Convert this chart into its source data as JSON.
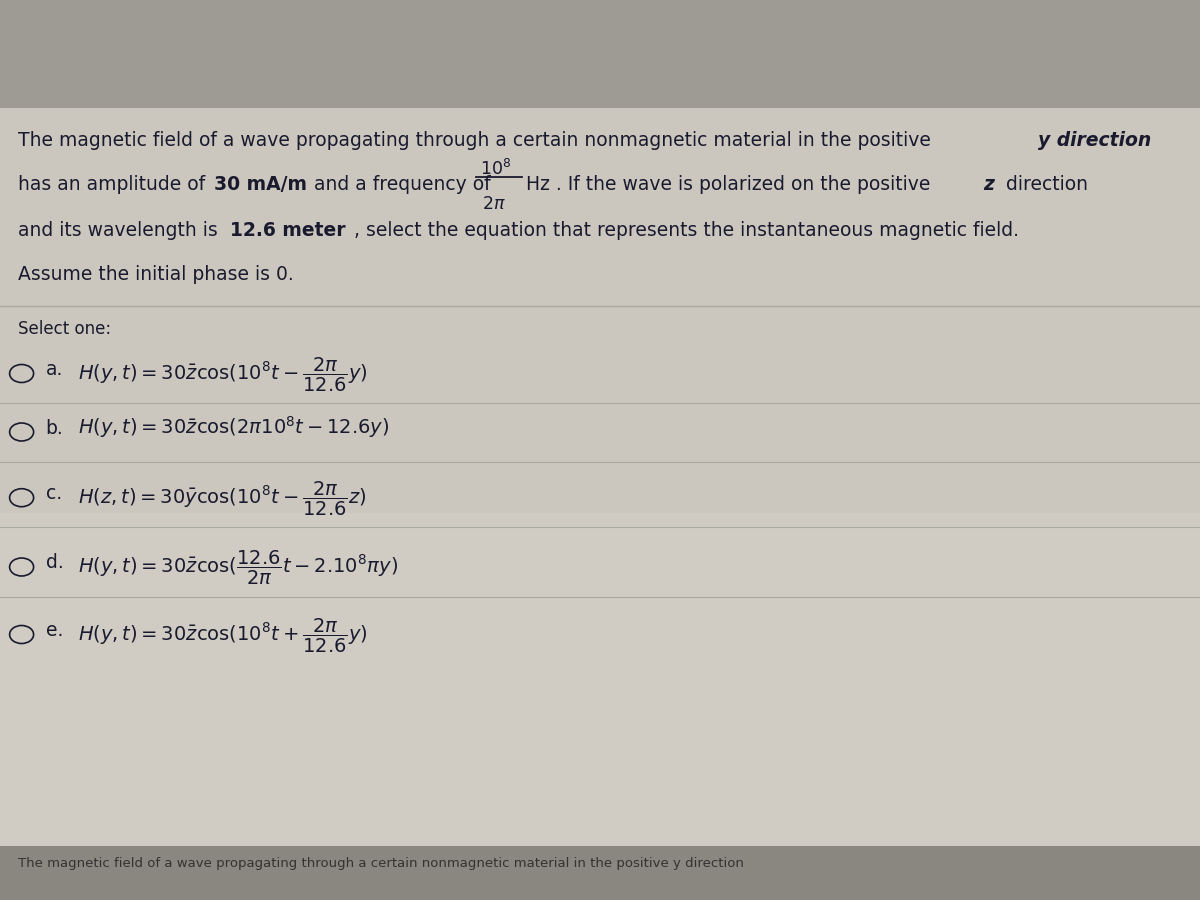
{
  "figsize": [
    12.0,
    9.0
  ],
  "dpi": 100,
  "bg_color": "#c8c4bc",
  "text_color": "#1a1a2e",
  "question_line1": "The magnetic field of a wave propagating through a certain nonmagnetic material in the positive ",
  "question_line1_bold": "y direction",
  "question_line2a": "has an amplitude of ",
  "question_line2b": "30 mA/m",
  "question_line2c": " and a frequency of ",
  "question_line2d": "Hz . If the wave is polarized on the positive ",
  "question_line2e": "z",
  "question_line2f": " direction",
  "question_line3a": "and its wavelength is ",
  "question_line3b": "12.6 meter",
  "question_line3c": ", select the equation that represents the instantaneous magnetic field.",
  "question_line4": "Assume the initial phase is 0.",
  "select_one": "Select one:",
  "options": [
    {
      "label": "a",
      "eq": "$H(y,t) = 30\\bar{z}\\cos(10^8t - \\dfrac{2\\pi}{12.6}y)$"
    },
    {
      "label": "b",
      "eq": "$H(y,t) = 30\\bar{z}\\cos(2\\pi10^8t - 12.6y)$"
    },
    {
      "label": "c",
      "eq": "$H(z,t) = 30\\bar{y}\\cos(10^8t - \\dfrac{2\\pi}{12.6}z)$"
    },
    {
      "label": "d",
      "eq": "$H(y,t) = 30\\bar{z}\\cos(\\dfrac{12.6}{2\\pi}t - 2.10^8\\pi y)$"
    },
    {
      "label": "e",
      "eq": "$H(y,t) = 30\\bar{z}\\cos(10^8t + \\dfrac{2\\pi}{12.6}y)$"
    }
  ],
  "bottom_text": "The magnetic field of a wave propagating through a certain nonmagnetic material in the positive y direction"
}
